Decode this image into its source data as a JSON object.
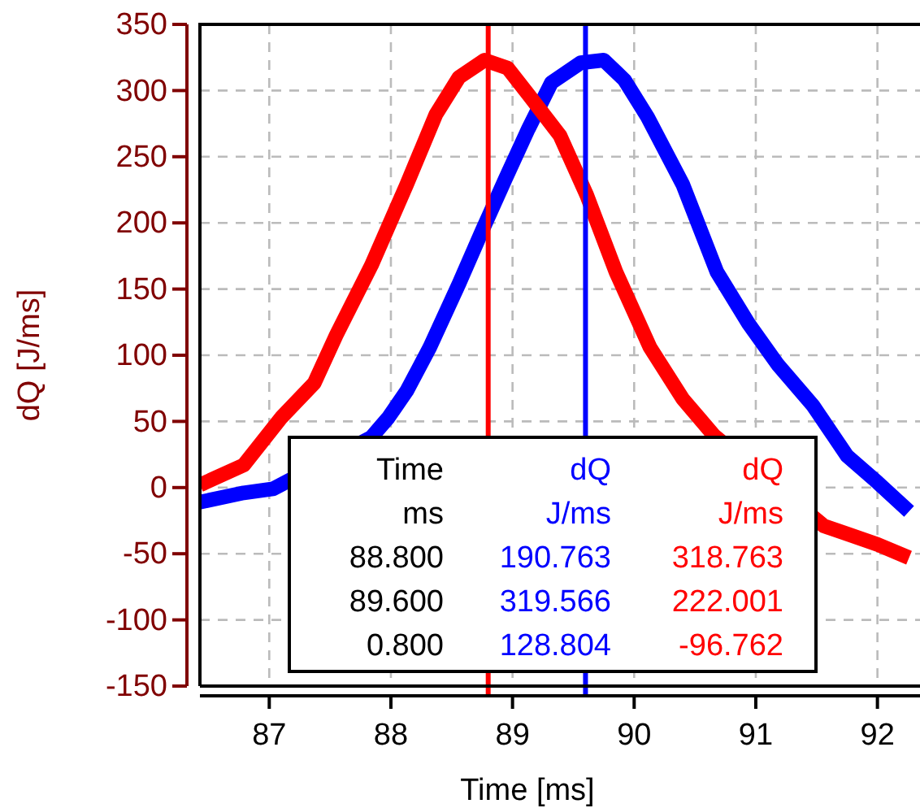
{
  "chart_data": {
    "type": "line",
    "xlabel": "Time [ms]",
    "ylabel": "dQ [J/ms]",
    "xlim": [
      86.43,
      92.35
    ],
    "ylim": [
      -150,
      350
    ],
    "xticks": [
      87,
      88,
      89,
      90,
      91,
      92
    ],
    "yticks": [
      -150,
      -100,
      -50,
      0,
      50,
      100,
      150,
      200,
      250,
      300,
      350
    ],
    "grid": true,
    "marker": "none",
    "line_style": "solid",
    "series": [
      {
        "color": "#0000ff",
        "x": [
          86.43,
          86.79,
          87.03,
          87.84,
          87.98,
          88.13,
          88.32,
          88.56,
          88.75,
          88.94,
          89.13,
          89.32,
          89.56,
          89.75,
          89.92,
          90.11,
          90.4,
          90.68,
          90.94,
          91.18,
          91.47,
          91.75,
          92.0,
          92.26
        ],
        "values": [
          -11,
          -4,
          -1,
          38,
          53,
          73,
          106,
          154,
          194,
          233,
          271,
          306,
          321,
          323,
          308,
          280,
          229,
          163,
          124,
          93,
          62,
          24,
          4,
          -18
        ]
      },
      {
        "color": "#ff0000",
        "x": [
          86.43,
          86.79,
          87.1,
          87.37,
          87.55,
          87.84,
          88.13,
          88.37,
          88.56,
          88.77,
          88.96,
          89.13,
          89.39,
          89.61,
          89.85,
          90.13,
          90.4,
          90.66,
          91.56,
          91.75,
          92.0,
          92.26
        ],
        "values": [
          2,
          17,
          53,
          79,
          115,
          168,
          229,
          282,
          310,
          323,
          317,
          297,
          266,
          221,
          163,
          106,
          67,
          39,
          -29,
          -35,
          -43,
          -53
        ]
      }
    ],
    "ref_lines": [
      {
        "axis": "x",
        "value": 88.8,
        "color": "#ff0000"
      },
      {
        "axis": "x",
        "value": 89.6,
        "color": "#0000ff"
      }
    ],
    "annotations": [
      "Time",
      "dQ",
      "dQ",
      "ms",
      "J/ms",
      "J/ms",
      "88.800",
      "190.763",
      "318.763",
      "89.600",
      "319.566",
      "222.001",
      "0.800",
      "128.804",
      "-96.762"
    ]
  }
}
